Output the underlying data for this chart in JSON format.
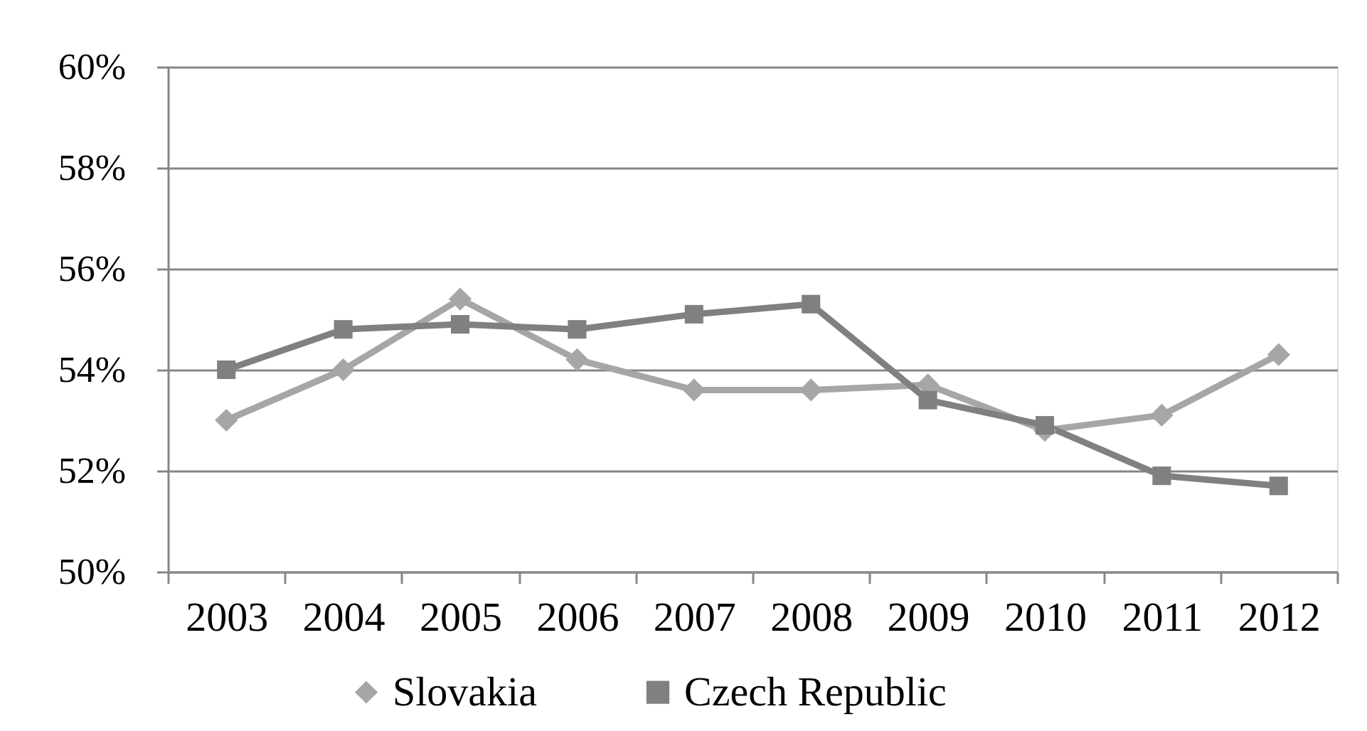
{
  "chart_data": {
    "type": "line",
    "categories": [
      "2003",
      "2004",
      "2005",
      "2006",
      "2007",
      "2008",
      "2009",
      "2010",
      "2011",
      "2012"
    ],
    "series": [
      {
        "name": "Slovakia",
        "color": "#a6a6a6",
        "marker": "diamond",
        "values": [
          53.0,
          54.0,
          55.4,
          54.2,
          53.6,
          53.6,
          53.7,
          52.8,
          53.1,
          54.3
        ]
      },
      {
        "name": "Czech Republic",
        "color": "#808080",
        "marker": "square",
        "values": [
          54.0,
          54.8,
          54.9,
          54.8,
          55.1,
          55.3,
          53.4,
          52.9,
          51.9,
          51.7
        ]
      }
    ],
    "ylim": [
      50,
      60
    ],
    "yticks": [
      {
        "value": 50,
        "label": "50%"
      },
      {
        "value": 52,
        "label": "52%"
      },
      {
        "value": 54,
        "label": "54%"
      },
      {
        "value": 56,
        "label": "56%"
      },
      {
        "value": 58,
        "label": "58%"
      },
      {
        "value": 60,
        "label": "60%"
      }
    ],
    "grid": "y",
    "legend": "bottom",
    "line_style": "solid"
  }
}
